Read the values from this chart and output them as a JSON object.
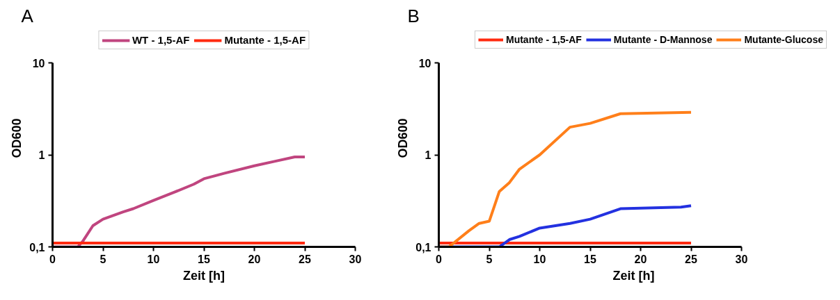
{
  "chart_data": [
    {
      "type": "line",
      "title": "A",
      "xlabel": "Zeit [h]",
      "ylabel": "OD600",
      "log": "y",
      "xlim": [
        0,
        30
      ],
      "ylim": [
        0.1,
        10
      ],
      "xticks": [
        0,
        5,
        10,
        15,
        20,
        25,
        30
      ],
      "yticks": [
        {
          "value": 0.1,
          "label": "0,1"
        },
        1,
        10
      ],
      "grid": false,
      "legend": "top",
      "marker": "none",
      "line_style": "solid",
      "series": [
        {
          "name": "WT - 1,5-AF",
          "color": "#c0457f",
          "x": [
            0,
            2.5,
            3,
            4,
            5,
            7,
            8,
            10,
            12,
            14,
            15,
            17,
            20,
            22,
            24,
            25
          ],
          "values": [
            0.1,
            0.1,
            0.115,
            0.17,
            0.2,
            0.24,
            0.26,
            0.32,
            0.39,
            0.48,
            0.55,
            0.63,
            0.76,
            0.85,
            0.95,
            0.95
          ]
        },
        {
          "name": "Mutante - 1,5-AF",
          "color": "#ff2a10",
          "x": [
            0,
            25
          ],
          "values": [
            0.11,
            0.11
          ]
        }
      ]
    },
    {
      "type": "line",
      "title": "B",
      "xlabel": "Zeit [h]",
      "ylabel": "OD600",
      "log": "y",
      "xlim": [
        0,
        30
      ],
      "ylim": [
        0.1,
        10
      ],
      "xticks": [
        0,
        5,
        10,
        15,
        20,
        25,
        30
      ],
      "yticks": [
        {
          "value": 0.1,
          "label": "0,1"
        },
        1,
        10
      ],
      "grid": false,
      "legend": "top",
      "marker": "none",
      "line_style": "solid",
      "series": [
        {
          "name": "Mutante - 1,5-AF",
          "color": "#ff2a10",
          "x": [
            0,
            25
          ],
          "values": [
            0.11,
            0.11
          ]
        },
        {
          "name": "Mutante - D-Mannose",
          "color": "#2331e0",
          "x": [
            0,
            6,
            7,
            8,
            10,
            13,
            15,
            18,
            24,
            25
          ],
          "values": [
            0.1,
            0.1,
            0.12,
            0.13,
            0.16,
            0.18,
            0.2,
            0.26,
            0.27,
            0.28
          ]
        },
        {
          "name": "Mutante-Glucose",
          "color": "#ff7f1a",
          "x": [
            0,
            1,
            3,
            4,
            5,
            6,
            7,
            8,
            10,
            13,
            15,
            18,
            25
          ],
          "values": [
            0.1,
            0.1,
            0.15,
            0.18,
            0.19,
            0.4,
            0.5,
            0.7,
            1.0,
            2.0,
            2.2,
            2.8,
            2.9
          ]
        }
      ]
    }
  ]
}
